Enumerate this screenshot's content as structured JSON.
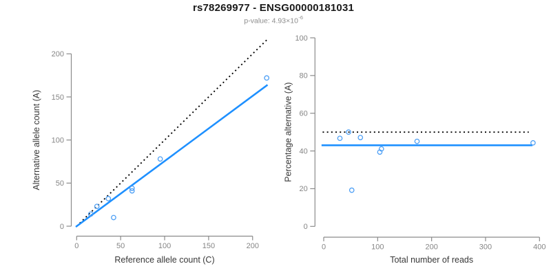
{
  "header": {
    "title": "rs78269977 - ENSG00000181031",
    "subtitle_prefix": "p-value: ",
    "subtitle_mantissa": "4.93×10",
    "subtitle_exponent": "-6"
  },
  "colors": {
    "background": "#ffffff",
    "line_blue": "#1E90FF",
    "point_blue": "#4D9FF5",
    "dotted_black": "#000000",
    "axis_line_gray": "#8a8a8a",
    "tick_label_gray": "#858585",
    "axis_title_gray": "#383838",
    "title_color": "#1a1a1a",
    "subtitle_gray": "#8c8c8c"
  },
  "chart_data": [
    {
      "name": "allele-counts",
      "type": "scatter",
      "xlabel": "Reference allele count (C)",
      "ylabel": "Alternative allele count (A)",
      "xlim": [
        0,
        217
      ],
      "ylim": [
        0,
        217
      ],
      "xticks": [
        0,
        50,
        100,
        150,
        200
      ],
      "yticks": [
        0,
        50,
        100,
        150,
        200
      ],
      "grid": false,
      "point_style": "open-circle",
      "points": [
        [
          16,
          14
        ],
        [
          23,
          23
        ],
        [
          36,
          32
        ],
        [
          42,
          10
        ],
        [
          63,
          44
        ],
        [
          63,
          41
        ],
        [
          95,
          78
        ],
        [
          216,
          172
        ]
      ],
      "lines": [
        {
          "name": "identity-expected",
          "style": "dotted",
          "color": "#000000",
          "from": [
            0,
            0
          ],
          "to": [
            216.5,
            216.5
          ]
        },
        {
          "name": "fitted-proportion",
          "style": "solid",
          "color": "#1E90FF",
          "from": [
            -1,
            -0.8
          ],
          "to": [
            217,
            164
          ]
        }
      ]
    },
    {
      "name": "percentage-reads",
      "type": "scatter",
      "xlabel": "Total number of reads",
      "ylabel": "Percentage alternative (A)",
      "xlim": [
        0,
        400
      ],
      "ylim": [
        0,
        100
      ],
      "xticks": [
        0,
        100,
        200,
        300,
        400
      ],
      "yticks": [
        0,
        20,
        40,
        60,
        80,
        100
      ],
      "grid": false,
      "point_style": "open-circle",
      "points": [
        [
          30,
          46.7
        ],
        [
          46,
          50
        ],
        [
          68,
          47.1
        ],
        [
          52,
          19.2
        ],
        [
          107,
          41.1
        ],
        [
          104,
          39.4
        ],
        [
          173,
          45.1
        ],
        [
          388,
          44.3
        ]
      ],
      "lines": [
        {
          "name": "expected-50pct",
          "style": "dotted",
          "color": "#000000",
          "from": [
            -2,
            50
          ],
          "to": [
            380,
            50
          ]
        },
        {
          "name": "observed-mean",
          "style": "solid",
          "color": "#1E90FF",
          "from": [
            -4,
            43
          ],
          "to": [
            387,
            43
          ]
        }
      ]
    }
  ]
}
